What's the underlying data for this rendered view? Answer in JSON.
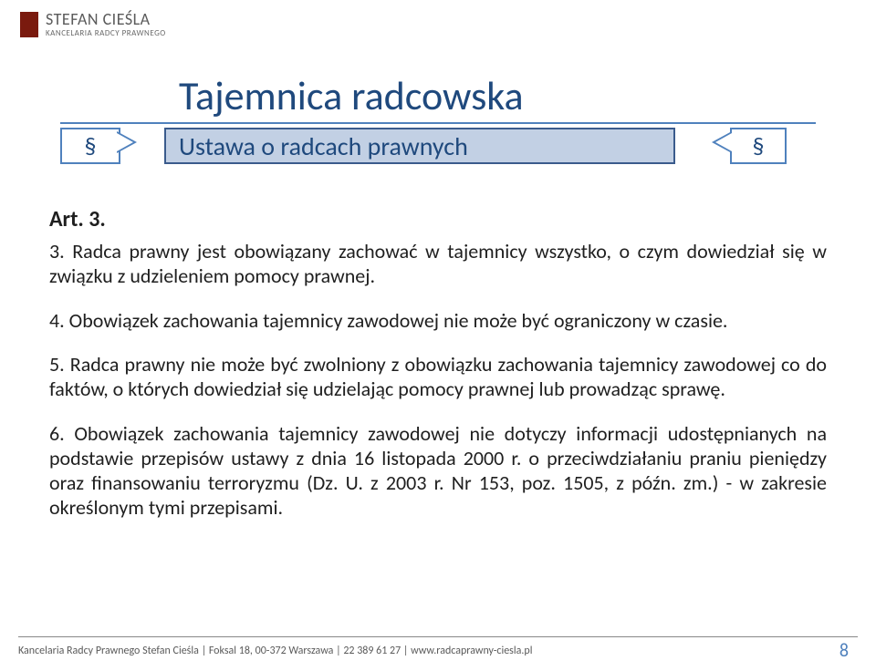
{
  "header": {
    "name": "STEFAN CIEŚLA",
    "sub": "KANCELARIA RADCY PRAWNEGO"
  },
  "title": "Tajemnica radcowska",
  "subtitle": "Ustawa o radcach prawnych",
  "section_symbol": "§",
  "article_heading": "Art. 3.",
  "paragraphs": {
    "p3": "3. Radca prawny jest obowiązany zachować w tajemnicy wszystko, o czym dowiedział się w związku z udzieleniem pomocy prawnej.",
    "p4": "4. Obowiązek zachowania tajemnicy zawodowej nie może być ograniczony w czasie.",
    "p5": "5. Radca prawny nie może być zwolniony z obowiązku zachowania tajemnicy zawodowej co do faktów, o których dowiedział się udzielając pomocy prawnej lub prowadząc sprawę.",
    "p6": "6. Obowiązek zachowania tajemnicy zawodowej nie dotyczy informacji udostępnianych na podstawie przepisów ustawy z dnia 16 listopada 2000 r. o przeciwdziałaniu praniu pieniędzy oraz finansowaniu terroryzmu (Dz. U. z 2003 r. Nr 153, poz. 1505, z późn. zm.) - w zakresie określonym tymi przepisami."
  },
  "footer": {
    "text": "Kancelaria Radcy Prawnego Stefan Cieśla | Foksal 18, 00-372 Warszawa | 22 389 61 27 | www.radcaprawny-ciesla.pl",
    "page": "8"
  },
  "colors": {
    "brand_blue": "#1f497d",
    "accent_blue": "#4f81bd",
    "bar_fill": "#c2d0e4",
    "bar_border": "#3a5b8c",
    "logo": "#7a1a0e",
    "text": "#1f1f1f",
    "footer_text": "#5a5a5a"
  }
}
